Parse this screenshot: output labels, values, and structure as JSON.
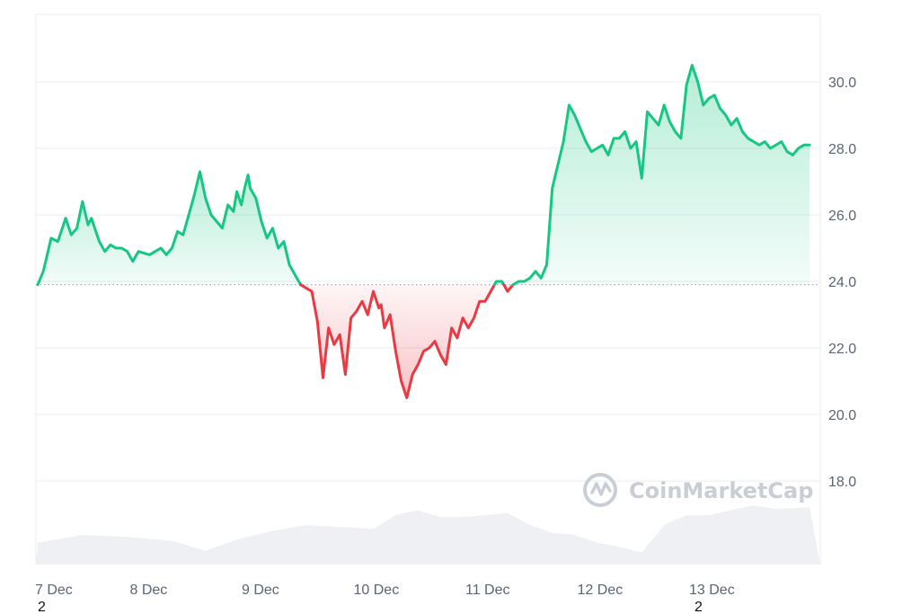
{
  "chart_data": {
    "type": "area",
    "title": "",
    "xlabel": "",
    "ylabel": "",
    "ylim": [
      16.0,
      32.0
    ],
    "baseline": 23.9,
    "y_ticks": [
      "30.0",
      "28.0",
      "26.0",
      "24.0",
      "22.0",
      "20.0",
      "18.0"
    ],
    "y_tick_values": [
      30.0,
      28.0,
      26.0,
      24.0,
      22.0,
      20.0,
      18.0
    ],
    "x_ticks": [
      "7 Dec",
      "8 Dec",
      "9 Dec",
      "10 Dec",
      "11 Dec",
      "12 Dec",
      "13 Dec"
    ],
    "x_tick_values": [
      0,
      1,
      2,
      3,
      4,
      5,
      6
    ],
    "x_under_labels": [
      {
        "text": "2",
        "at": 0
      },
      {
        "text": "2",
        "at": 6
      }
    ],
    "xlim": [
      0,
      6.9
    ],
    "grid": true,
    "colors": {
      "up": "#16c784",
      "down": "#ea3943",
      "grid": "#e9ecef",
      "baseline": "#9aa3ad",
      "volume": "#eef0f3"
    },
    "watermark": "CoinMarketCap",
    "series": [
      {
        "x": [
          0.0,
          0.05,
          0.12,
          0.18,
          0.25,
          0.3,
          0.35,
          0.4,
          0.45,
          0.48,
          0.52,
          0.55,
          0.6,
          0.65,
          0.7,
          0.75,
          0.8,
          0.85,
          0.9,
          1.0,
          1.05,
          1.1,
          1.15,
          1.2,
          1.25,
          1.3,
          1.35,
          1.4,
          1.45,
          1.5,
          1.55,
          1.6,
          1.65,
          1.7,
          1.75,
          1.78,
          1.82,
          1.85,
          1.88,
          1.9,
          1.95,
          2.0,
          2.05,
          2.1,
          2.15,
          2.2,
          2.25,
          2.3,
          2.35,
          2.4,
          2.45,
          2.5,
          2.55,
          2.6,
          2.65,
          2.7,
          2.75,
          2.8,
          2.85,
          2.9,
          2.95,
          3.0,
          3.05,
          3.07,
          3.1,
          3.15,
          3.2,
          3.25,
          3.3,
          3.35,
          3.4,
          3.45,
          3.5,
          3.55,
          3.6,
          3.65,
          3.7,
          3.75,
          3.8,
          3.85,
          3.9,
          3.95,
          4.0,
          4.05,
          4.1,
          4.15,
          4.2,
          4.25,
          4.3,
          4.35,
          4.4,
          4.45,
          4.5,
          4.55,
          4.6,
          4.65,
          4.7,
          4.75,
          4.8,
          4.85,
          4.9,
          4.95,
          5.0,
          5.05,
          5.1,
          5.15,
          5.2,
          5.25,
          5.3,
          5.35,
          5.4,
          5.45,
          5.5,
          5.55,
          5.6,
          5.65,
          5.7,
          5.75,
          5.8,
          5.85,
          5.9,
          5.95,
          6.0,
          6.05,
          6.1,
          6.15,
          6.2,
          6.25,
          6.3,
          6.35,
          6.4,
          6.45,
          6.5,
          6.55,
          6.6,
          6.65,
          6.7,
          6.75,
          6.8,
          6.85,
          6.9
        ],
        "values": [
          23.9,
          24.3,
          25.3,
          25.2,
          25.9,
          25.4,
          25.6,
          26.4,
          25.7,
          25.9,
          25.5,
          25.2,
          24.9,
          25.1,
          25.0,
          25.0,
          24.9,
          24.6,
          24.9,
          24.8,
          24.9,
          25.0,
          24.8,
          25.0,
          25.5,
          25.4,
          26.0,
          26.6,
          27.3,
          26.5,
          26.0,
          25.8,
          25.6,
          26.3,
          26.1,
          26.7,
          26.3,
          26.8,
          27.2,
          26.8,
          26.5,
          25.8,
          25.3,
          25.6,
          25.0,
          25.2,
          24.5,
          24.2,
          23.9,
          23.8,
          23.7,
          22.8,
          21.1,
          22.6,
          22.1,
          22.4,
          21.2,
          22.9,
          23.1,
          23.4,
          23.0,
          23.7,
          23.2,
          23.3,
          22.6,
          23.0,
          21.9,
          21.0,
          20.5,
          21.2,
          21.5,
          21.9,
          22.0,
          22.2,
          21.8,
          21.5,
          22.6,
          22.3,
          22.9,
          22.6,
          22.9,
          23.4,
          23.4,
          23.7,
          24.0,
          24.0,
          23.7,
          23.9,
          24.0,
          24.0,
          24.1,
          24.3,
          24.1,
          24.5,
          26.8,
          27.5,
          28.2,
          29.3,
          29.0,
          28.6,
          28.2,
          27.9,
          28.0,
          28.1,
          27.8,
          28.3,
          28.3,
          28.5,
          28.0,
          28.2,
          27.1,
          29.1,
          28.9,
          28.7,
          29.3,
          28.8,
          28.5,
          28.3,
          29.9,
          30.5,
          30.0,
          29.3,
          29.5,
          29.6,
          29.2,
          29.0,
          28.7,
          28.9,
          28.5,
          28.3,
          28.2,
          28.1,
          28.2,
          28.0,
          28.1,
          28.2,
          27.9,
          27.8,
          28.0,
          28.1,
          28.1
        ]
      }
    ],
    "volume": {
      "x": [
        0.0,
        0.4,
        0.8,
        1.2,
        1.5,
        1.8,
        2.1,
        2.4,
        2.7,
        3.0,
        3.2,
        3.4,
        3.6,
        3.8,
        4.0,
        4.2,
        4.4,
        4.6,
        4.8,
        5.0,
        5.2,
        5.4,
        5.6,
        5.8,
        6.0,
        6.2,
        6.4,
        6.6,
        6.9
      ],
      "values": [
        0.22,
        0.3,
        0.28,
        0.24,
        0.14,
        0.26,
        0.34,
        0.4,
        0.38,
        0.36,
        0.5,
        0.55,
        0.48,
        0.48,
        0.5,
        0.52,
        0.4,
        0.32,
        0.3,
        0.22,
        0.18,
        0.12,
        0.4,
        0.5,
        0.5,
        0.55,
        0.6,
        0.56,
        0.58
      ]
    }
  }
}
